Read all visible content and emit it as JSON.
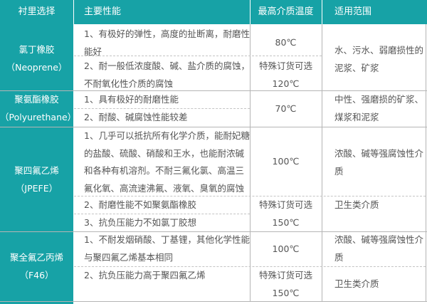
{
  "header": {
    "col1": "衬里选择",
    "col2": "主要性能",
    "col3": "最高介质温度",
    "col4": "适用范围"
  },
  "rows": [
    {
      "name": [
        "氯丁橡胶",
        "（Neoprene）"
      ],
      "props": [
        [
          "1、有极好的弹性，高度的扯断离，耐磨性",
          "能好"
        ],
        [
          "2、耐一般低浓度酸、碱、盐介质的腐蚀，",
          "不耐氧化性介质的腐蚀"
        ]
      ],
      "temp": [
        "80℃",
        "特殊订货可选",
        "120℃"
      ],
      "usage": [
        "水、污水、弱磨损性的",
        "泥浆、矿浆"
      ]
    },
    {
      "name": [
        "聚氨酯橡胶",
        "（Polyurethane）"
      ],
      "props": [
        [
          "1、具有极好的耐磨性能"
        ],
        [
          "2、耐酸、碱腐蚀性能较差"
        ]
      ],
      "temp": [
        "70℃"
      ],
      "usage": [
        "中性、强磨损的矿浆、",
        "煤浆和泥浆"
      ]
    },
    {
      "name": [
        "聚四氟乙烯",
        "（JPEFE）"
      ],
      "props": [
        [
          "1、几乎可以抵抗所有化学介质，能耐妃糖",
          "的盐酸、硫酸、硝酸和王水，也能耐浓碱",
          "和各种有机溶剂。不耐三氟化氯、高温三",
          "氟化氧、高流速沸氟、液氧、臭氧的腐蚀"
        ],
        [
          "2、耐磨性能不如聚氨酯橡胶"
        ],
        [
          "3、抗负压能力不如氯丁胶想"
        ]
      ],
      "temp": [
        "100℃",
        "特殊订货可选",
        "150℃"
      ],
      "usage": [
        [
          "浓酸、碱等强腐蚀性介",
          "质"
        ],
        [
          "卫生类介质"
        ]
      ]
    },
    {
      "name": [
        "聚全氟乙丙烯",
        "（F46）"
      ],
      "props": [
        [
          "1、不耐发烟硝酸、丁基锂，其他化学性能",
          "与聚四氟乙烯基本相同"
        ],
        [
          "2、抗负压能力高于聚四氟乙烯"
        ]
      ],
      "temp": [
        "100℃",
        "特殊订货可选",
        "150℃"
      ],
      "usage": [
        [
          "浓酸、碱等强腐蚀性介",
          "质"
        ],
        [
          "卫生类介质"
        ]
      ]
    }
  ],
  "colors": {
    "header_bg": "#17a2a6",
    "border": "#b5b5b5",
    "text": "#555555"
  }
}
